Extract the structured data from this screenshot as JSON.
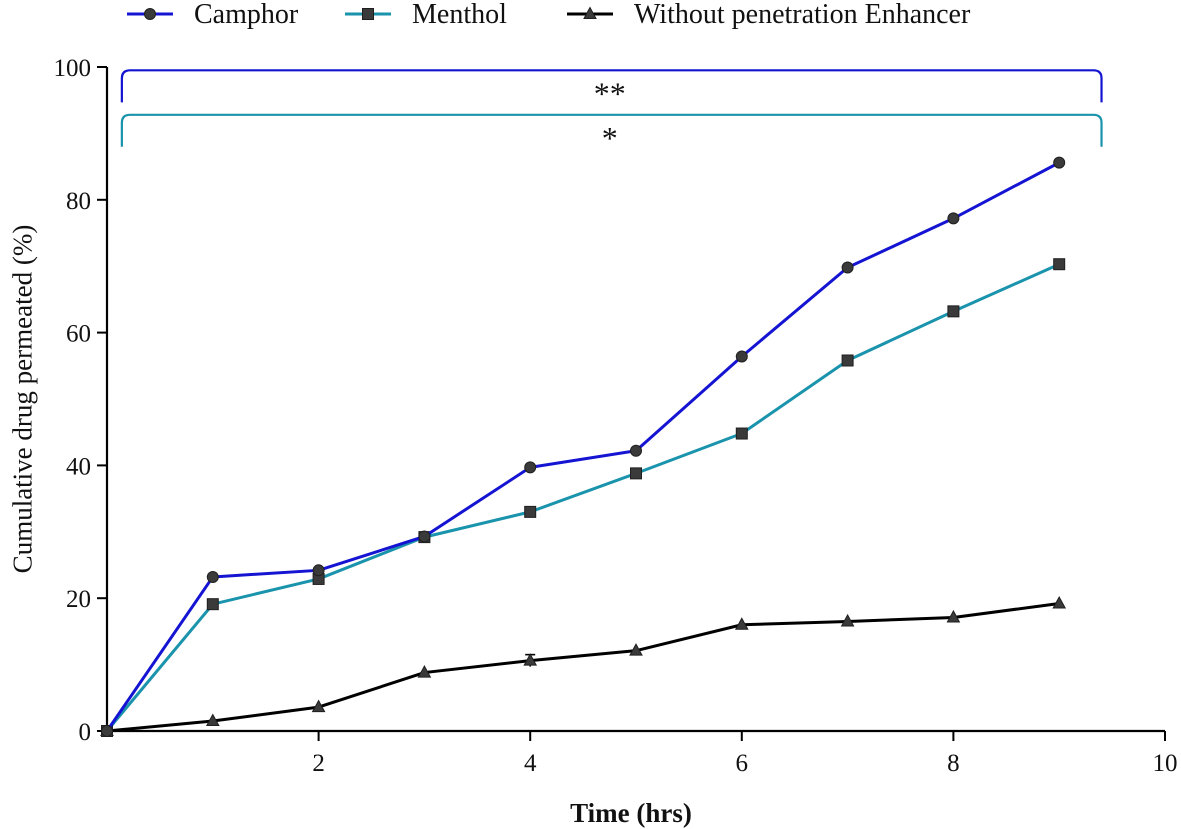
{
  "chart_data": {
    "type": "line",
    "title": "",
    "xlabel": "Time (hrs)",
    "ylabel": "Cumulative drug permeated (%)",
    "xlim": [
      0,
      10
    ],
    "ylim": [
      0,
      100
    ],
    "x_ticks": [
      2,
      4,
      6,
      8,
      10
    ],
    "y_ticks": [
      0,
      20,
      40,
      60,
      80,
      100
    ],
    "x_tick_labels": [
      "2",
      "4",
      "6",
      "8",
      "10"
    ],
    "y_tick_labels": [
      "0",
      "20",
      "40",
      "60",
      "80",
      "100"
    ],
    "grid": false,
    "legend_position": "top",
    "x": [
      0,
      1,
      2,
      3,
      4,
      5,
      6,
      7,
      8,
      9
    ],
    "series": [
      {
        "name": "Camphor",
        "marker": "circle",
        "color": "#1414d2",
        "values": [
          0,
          23.2,
          24.2,
          29.3,
          39.7,
          42.2,
          56.4,
          69.8,
          77.2,
          85.6
        ]
      },
      {
        "name": "Menthol",
        "marker": "square",
        "color": "#1a93ac",
        "values": [
          0,
          19.1,
          22.9,
          29.2,
          33.0,
          38.8,
          44.8,
          55.8,
          63.2,
          70.3
        ]
      },
      {
        "name": "Without penetration Enhancer",
        "marker": "triangle",
        "color": "#000000",
        "values": [
          0,
          1.5,
          3.6,
          8.8,
          10.6,
          12.1,
          16.0,
          16.5,
          17.1,
          19.2
        ],
        "error_bars": [
          0,
          0,
          0,
          0,
          0.9,
          0,
          0,
          0,
          0,
          0
        ]
      }
    ],
    "annotations": [
      {
        "type": "significance-bracket",
        "label": "**",
        "color": "#1414d2",
        "y": 99.5,
        "x_range": [
          0.15,
          9.4
        ]
      },
      {
        "type": "significance-bracket",
        "label": "*",
        "color": "#1a93ac",
        "y": 92.8,
        "x_range": [
          0.15,
          9.4
        ]
      }
    ]
  }
}
